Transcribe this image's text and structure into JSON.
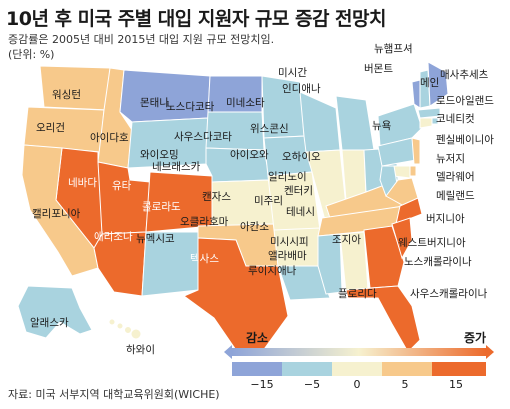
{
  "title": "10년 후 미국 주별 대입 지원자 규모 증감 전망치",
  "subtitle": "증감률은 2005년 대비 2015년 대입 지원 규모 전망치임.",
  "unit": "(단위: %)",
  "source": "자료: 미국 서부지역 대학교육위원회(WICHE)",
  "colors": {
    "cat_neg2": "#8ea4d8",
    "cat_neg1": "#a9d3df",
    "cat_neu": "#f6f1cf",
    "cat_pos1": "#f7c98b",
    "cat_pos2": "#ec6a2c",
    "ocean": "#ffffff"
  },
  "states": {
    "washington": "워싱턴",
    "oregon": "오리건",
    "idaho": "아이다호",
    "montana": "몬태나",
    "wyoming": "와이오밍",
    "nevada": "네바다",
    "utah": "유타",
    "colorado": "콜로라도",
    "california": "캘리포니아",
    "arizona": "애리조나",
    "new_mexico": "뉴멕시코",
    "north_dakota": "노스다코타",
    "south_dakota": "사우스다코타",
    "nebraska": "네브래스카",
    "kansas": "캔자스",
    "oklahoma": "오클라호마",
    "texas": "텍사스",
    "minnesota": "미네소타",
    "iowa": "아이오와",
    "missouri": "미주리",
    "arkansas": "아칸소",
    "louisiana": "루이지애나",
    "wisconsin": "위스콘신",
    "illinois": "일리노이",
    "michigan": "미시간",
    "indiana": "인디애나",
    "ohio": "오하이오",
    "kentucky": "켄터키",
    "tennessee": "테네시",
    "mississippi": "미시시피",
    "alabama": "앨라배마",
    "georgia": "조지아",
    "florida": "플로리다",
    "new_york": "뉴욕",
    "vermont": "버몬트",
    "new_hampshire": "뉴햄프셔",
    "maine": "메인",
    "massachusetts": "매사추세츠",
    "rhode_island": "로드아일랜드",
    "connecticut": "코네티컷",
    "pennsylvania": "펜실베이니아",
    "new_jersey": "뉴저지",
    "delaware": "델라웨어",
    "maryland": "메릴랜드",
    "virginia": "버지니아",
    "west_virginia": "웨스트버지니아",
    "north_carolina": "노스캐롤라이나",
    "south_carolina": "사우스캐롤라이나",
    "alaska": "알래스카",
    "hawaii": "하와이"
  },
  "legend": {
    "decrease": "감소",
    "increase": "증가",
    "ticks": [
      "−15",
      "−5",
      "0",
      "5",
      "15"
    ]
  }
}
